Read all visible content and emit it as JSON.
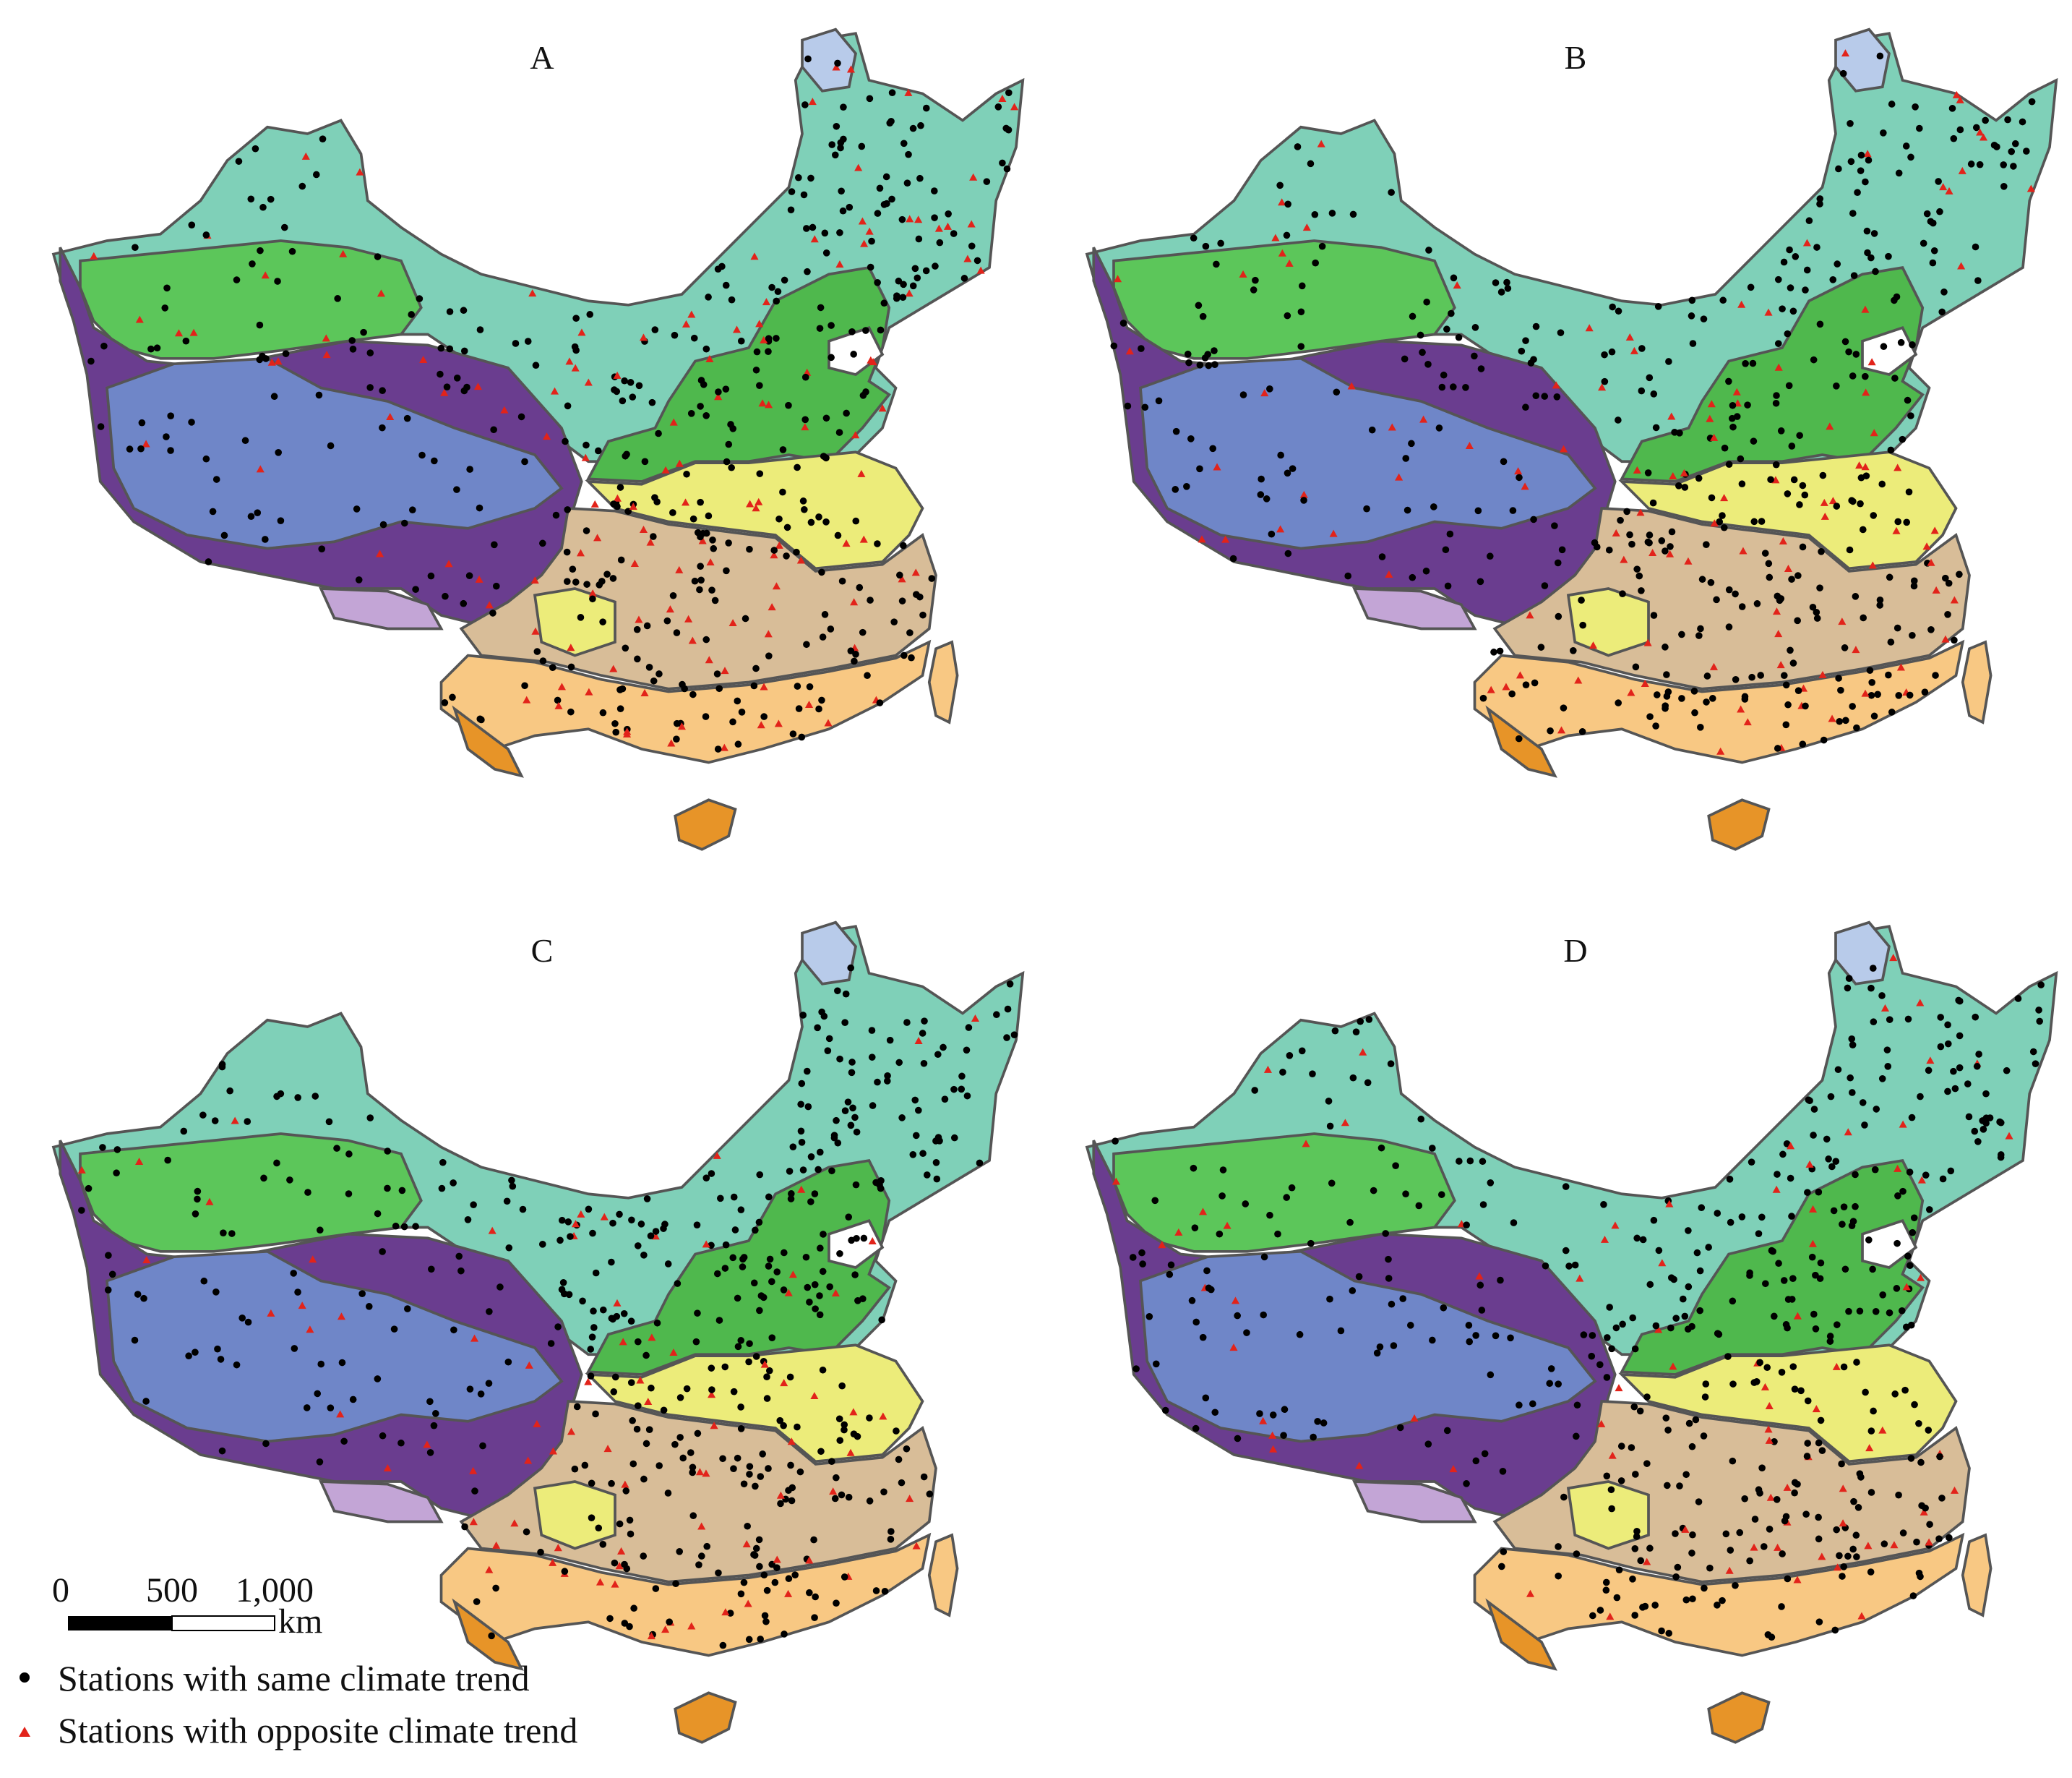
{
  "panels": [
    {
      "label": "A",
      "seed": 11,
      "opposite_share": 0.27
    },
    {
      "label": "B",
      "seed": 23,
      "opposite_share": 0.22
    },
    {
      "label": "C",
      "seed": 37,
      "opposite_share": 0.16
    },
    {
      "label": "D",
      "seed": 51,
      "opposite_share": 0.12
    }
  ],
  "scale_bar": {
    "ticks": [
      "0",
      "500",
      "1,000"
    ],
    "unit": "km"
  },
  "legend": {
    "same": "Stations with same climate trend",
    "opposite": "Stations with opposite climate trend"
  },
  "colors": {
    "northeast_teal": "#7fd0b8",
    "xinjiang_green": "#5cc65a",
    "north_china_green": "#4fb84d",
    "tibet_purple": "#6a3d8f",
    "tibet_blue": "#6f86c8",
    "light_blue_lake": "#b8cbea",
    "lavender": "#c3a5d6",
    "yellow": "#ecec7a",
    "tan": "#d8bd98",
    "orange_south": "#f8c883",
    "deep_orange": "#e79428",
    "same_marker": "#000000",
    "opposite_marker": "#e2231a"
  }
}
